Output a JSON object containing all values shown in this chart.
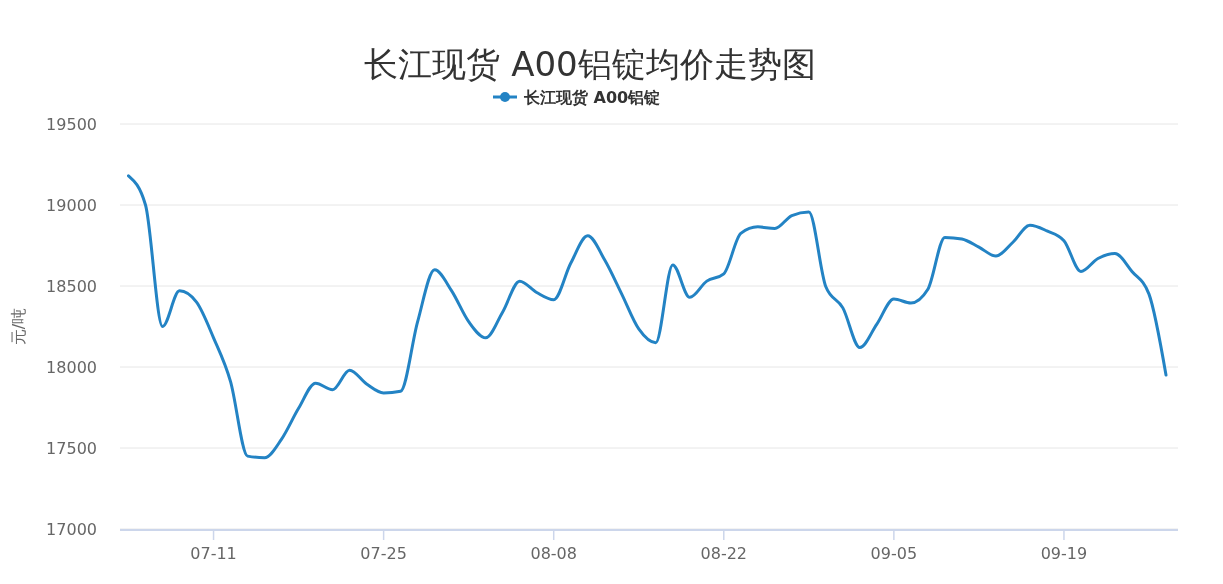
{
  "chart_data": {
    "type": "line",
    "title": "长江现货 A00铝锭均价走势图",
    "ylabel": "元/吨",
    "categories": [
      null,
      null,
      null,
      null,
      null,
      "07-11",
      null,
      null,
      null,
      null,
      null,
      null,
      null,
      null,
      null,
      "07-25",
      null,
      null,
      null,
      null,
      null,
      null,
      null,
      null,
      null,
      "08-08",
      null,
      null,
      null,
      null,
      null,
      null,
      null,
      null,
      null,
      "08-22",
      null,
      null,
      null,
      null,
      null,
      null,
      null,
      null,
      null,
      "09-05",
      null,
      null,
      null,
      null,
      null,
      null,
      null,
      null,
      null,
      "09-19",
      null,
      null,
      null,
      null,
      null,
      null
    ],
    "series": [
      {
        "name": "长江现货 A00铝锭",
        "color": "#2383c4",
        "values": [
          19180,
          19000,
          18250,
          18470,
          18400,
          18180,
          17910,
          17450,
          17440,
          17555,
          17745,
          17900,
          17860,
          17980,
          17895,
          17840,
          17850,
          18280,
          18600,
          18470,
          18280,
          18180,
          18340,
          18530,
          18460,
          18415,
          18640,
          18810,
          18660,
          18450,
          18235,
          18150,
          18630,
          18430,
          18530,
          18575,
          18825,
          18865,
          18855,
          18935,
          18957,
          18495,
          18365,
          18120,
          18265,
          18420,
          18395,
          18480,
          18800,
          18790,
          18740,
          18685,
          18770,
          18875,
          18840,
          18780,
          18590,
          18670,
          18700,
          18590,
          18450,
          17950
        ]
      }
    ],
    "ylim": [
      17000,
      19500
    ],
    "yticks": [
      17000,
      17500,
      18000,
      18500,
      19000,
      19500
    ],
    "grid": "y",
    "legend": "top",
    "marker": "none",
    "line_style": "solid"
  }
}
